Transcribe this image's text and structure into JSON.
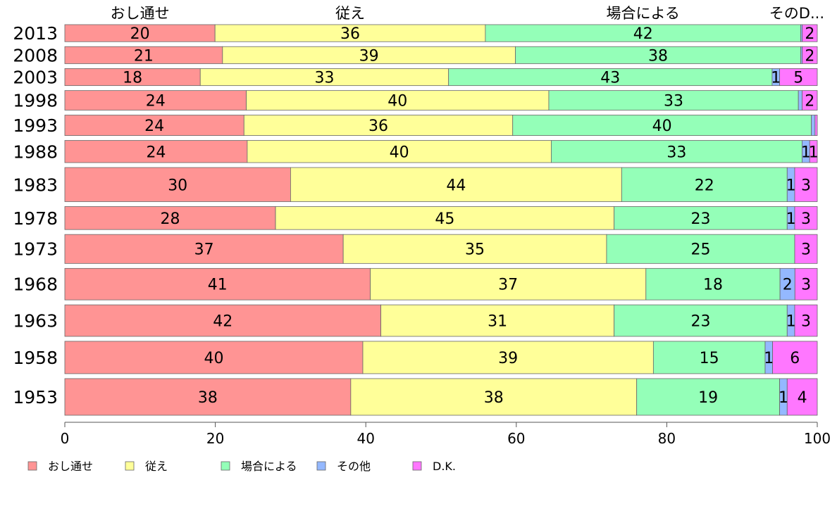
{
  "chart_data": {
    "type": "bar",
    "orientation": "horizontal",
    "stacked": true,
    "categories": [
      "2013",
      "2008",
      "2003",
      "1998",
      "1993",
      "1988",
      "1983",
      "1978",
      "1973",
      "1968",
      "1963",
      "1958",
      "1953"
    ],
    "series": [
      {
        "name": "おし通せ",
        "color": "#ff9494",
        "values": [
          20,
          21,
          18,
          24,
          24,
          24,
          30,
          28,
          37,
          41,
          42,
          40,
          38
        ]
      },
      {
        "name": "従え",
        "color": "#ffff99",
        "values": [
          36,
          39,
          33,
          40,
          36,
          40,
          44,
          45,
          35,
          37,
          31,
          39,
          38
        ]
      },
      {
        "name": "場合による",
        "color": "#94ffb8",
        "values": [
          42,
          38,
          43,
          33,
          40,
          33,
          22,
          23,
          25,
          18,
          23,
          15,
          19
        ]
      },
      {
        "name": "その他",
        "color": "#94b8ff",
        "values": [
          0.2,
          0.2,
          1,
          0.5,
          0.5,
          1,
          1,
          1,
          0,
          2,
          1,
          1,
          1
        ]
      },
      {
        "name": "D.K.",
        "color": "#ff77ff",
        "values": [
          2,
          2,
          5,
          2,
          0.3,
          1,
          3,
          3,
          3,
          3,
          3,
          6,
          4
        ]
      }
    ],
    "data_labels": [
      [
        "20",
        "36",
        "42",
        "",
        "2"
      ],
      [
        "21",
        "39",
        "38",
        "",
        "2"
      ],
      [
        "18",
        "33",
        "43",
        "1",
        "5"
      ],
      [
        "24",
        "40",
        "33",
        "",
        "2"
      ],
      [
        "24",
        "36",
        "40",
        "",
        ""
      ],
      [
        "24",
        "40",
        "33",
        "1",
        "1"
      ],
      [
        "30",
        "44",
        "22",
        "1",
        "3"
      ],
      [
        "28",
        "45",
        "23",
        "1",
        "3"
      ],
      [
        "37",
        "35",
        "25",
        "",
        "3"
      ],
      [
        "41",
        "37",
        "18",
        "2",
        "3"
      ],
      [
        "42",
        "31",
        "23",
        "1",
        "3"
      ],
      [
        "40",
        "39",
        "15",
        "1",
        "6"
      ],
      [
        "38",
        "38",
        "19",
        "1",
        "4"
      ]
    ],
    "top_labels": [
      "おし通せ",
      "従え",
      "場合による",
      "そのD..."
    ],
    "row_weights": [
      1,
      1,
      1,
      1.15,
      1.2,
      1.3,
      2,
      1.35,
      1.7,
      1.85,
      1.85,
      1.9,
      2.15
    ],
    "x_ticks": [
      0,
      20,
      40,
      60,
      80,
      100
    ],
    "xlim": [
      0,
      100
    ],
    "legend": {
      "position": "bottom-left",
      "items": [
        "おし通せ",
        "従え",
        "場合による",
        "その他",
        "D.K."
      ]
    },
    "grid": false
  }
}
